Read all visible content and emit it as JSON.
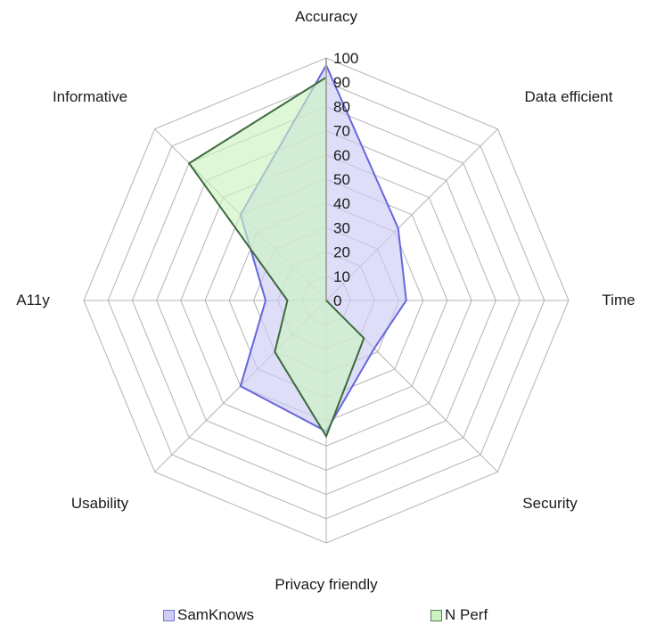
{
  "chart_data": {
    "type": "radar",
    "title": "",
    "categories": [
      "Accuracy",
      "Data efficient",
      "Time",
      "Security",
      "Privacy friendly",
      "Usability",
      "A11y",
      "Informative"
    ],
    "series": [
      {
        "name": "SamKnows",
        "values": [
          97,
          42,
          33,
          28,
          54,
          50,
          25,
          50
        ],
        "fill": "#ccccf5",
        "stroke": "#6666dd"
      },
      {
        "name": "N Perf",
        "values": [
          92,
          0,
          0,
          22,
          56,
          30,
          16,
          80
        ],
        "fill": "#ccf2c2",
        "stroke": "#3d6b3d"
      }
    ],
    "rlim": [
      0,
      100
    ],
    "ticks": [
      0,
      10,
      20,
      30,
      40,
      50,
      60,
      70,
      80,
      90,
      100
    ],
    "grid": true,
    "legend_position": "bottom"
  },
  "legend": {
    "items": [
      {
        "label": "SamKnows",
        "color": "#ccccf5"
      },
      {
        "label": "N Perf",
        "color": "#ccf2c2"
      }
    ]
  }
}
